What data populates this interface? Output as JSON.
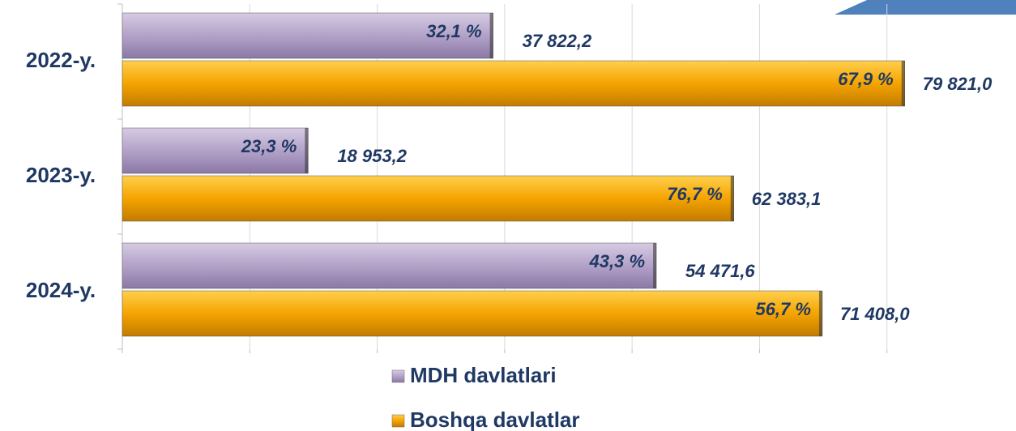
{
  "chart_data": {
    "type": "bar",
    "orientation": "horizontal",
    "categories": [
      "2022-y.",
      "2023-y.",
      "2024-y."
    ],
    "series": [
      {
        "name": "MDH davlatlari",
        "color": "#b3a2c8",
        "values": [
          37822.2,
          18953.2,
          54471.6
        ],
        "value_labels": [
          "37 822,2",
          "18 953,2",
          "54 471,6"
        ],
        "share_labels": [
          "32,1 %",
          "23,3 %",
          "43,3 %"
        ]
      },
      {
        "name": "Boshqa davlatlar",
        "color": "#f5a400",
        "values": [
          79821.0,
          62383.1,
          71408.0
        ],
        "value_labels": [
          "79 821,0",
          "62 383,1",
          "71 408,0"
        ],
        "share_labels": [
          "67,9 %",
          "76,7 %",
          "56,7 %"
        ]
      }
    ],
    "xlim": [
      0,
      91000
    ],
    "xticks": [
      0,
      13000,
      26000,
      39000,
      52000,
      65000,
      78000
    ],
    "grid": true
  }
}
